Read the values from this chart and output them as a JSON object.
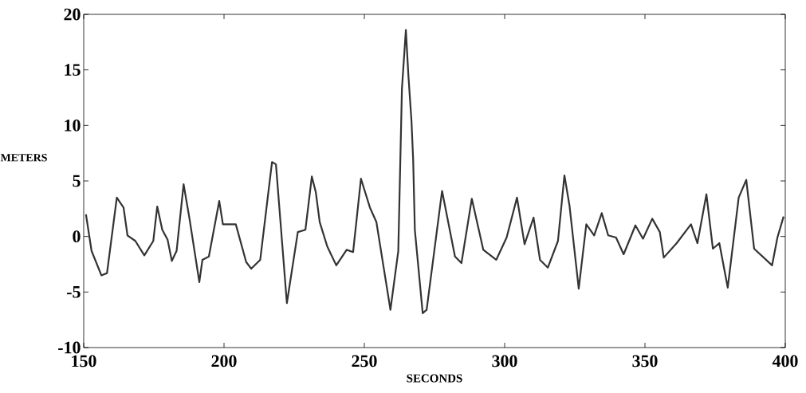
{
  "chart_data": {
    "type": "line",
    "xlabel": "SECONDS",
    "ylabel": "METERS",
    "xlim": [
      150,
      400
    ],
    "ylim": [
      -10,
      20
    ],
    "xticks": [
      150,
      200,
      250,
      300,
      350,
      400
    ],
    "yticks": [
      -10,
      -5,
      0,
      5,
      10,
      15,
      20
    ],
    "grid": false,
    "marker": "none",
    "line_style": "solid",
    "series": [
      {
        "color": "#333333",
        "x": [
          150.8,
          152.8,
          156.3,
          158.3,
          161.8,
          164.2,
          165.6,
          168.4,
          171.6,
          174.8,
          176.2,
          178,
          179.9,
          181.4,
          183.1,
          185.6,
          187.7,
          191.2,
          192.3,
          194.6,
          198.3,
          199.6,
          204.2,
          207.9,
          209.7,
          212.9,
          217.1,
          218.5,
          222.4,
          226.3,
          229,
          231.3,
          232.7,
          234.1,
          236.8,
          240,
          243.7,
          246,
          248.8,
          252,
          254.3,
          259.3,
          262.1,
          263.4,
          264.8,
          265.7,
          266.8,
          267.4,
          268,
          270.8,
          272.2,
          277.7,
          282.3,
          284.6,
          288.3,
          292.4,
          297,
          300.7,
          304.4,
          307.1,
          310.3,
          312.6,
          315.4,
          319,
          321.3,
          323.1,
          326.4,
          329.1,
          331.9,
          334.6,
          336.9,
          339.7,
          342.4,
          346.6,
          349.3,
          352.6,
          355.3,
          356.7,
          361.3,
          366.4,
          368.7,
          371.9,
          374.2,
          376.5,
          379.5,
          383.4,
          386.1,
          388.9,
          395.3,
          397.2,
          399.4
        ],
        "values": [
          2.0,
          -1.3,
          -3.5,
          -3.3,
          3.5,
          2.6,
          0.1,
          -0.4,
          -1.7,
          -0.4,
          2.7,
          0.6,
          -0.3,
          -2.2,
          -1.3,
          4.7,
          1.6,
          -4.1,
          -2.1,
          -1.8,
          3.2,
          1.1,
          1.1,
          -2.3,
          -2.9,
          -2.1,
          6.7,
          6.5,
          -6.0,
          0.4,
          0.6,
          5.4,
          4.0,
          1.3,
          -0.9,
          -2.6,
          -1.2,
          -1.4,
          5.2,
          2.6,
          1.3,
          -6.6,
          -1.3,
          13.3,
          18.6,
          14.5,
          10.4,
          6.9,
          0.6,
          -6.9,
          -6.6,
          4.1,
          -1.8,
          -2.4,
          3.4,
          -1.2,
          -2.1,
          -0.1,
          3.5,
          -0.7,
          1.7,
          -2.1,
          -2.8,
          -0.4,
          5.5,
          2.8,
          -4.7,
          1.1,
          0.1,
          2.1,
          0.1,
          -0.1,
          -1.6,
          1.0,
          -0.2,
          1.6,
          0.4,
          -1.9,
          -0.6,
          1.1,
          -0.6,
          3.8,
          -1.1,
          -0.6,
          -4.6,
          3.5,
          5.1,
          -1.1,
          -2.6,
          -0.1,
          1.8
        ]
      }
    ]
  }
}
